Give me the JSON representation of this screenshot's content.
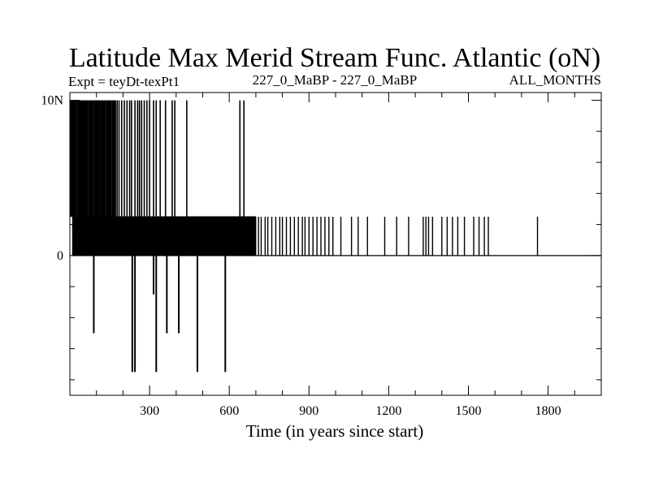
{
  "chart_data": {
    "type": "line",
    "title": "Latitude Max Merid Stream Func. Atlantic (oN)",
    "subtitle_left": "Expt = teyDt-texPt1",
    "subtitle_center": "227_0_MaBP - 227_0_MaBP",
    "subtitle_right": "ALL_MONTHS",
    "xlabel": "Time (in years since start)",
    "ylabel": "",
    "xlim": [
      0,
      2000
    ],
    "ylim": [
      -9,
      10.5
    ],
    "x_ticks": [
      300,
      600,
      900,
      1200,
      1500,
      1800
    ],
    "x_tick_labels": [
      "300",
      "600",
      "900",
      "1200",
      "1500",
      "1800"
    ],
    "y_ticks": [
      10,
      0
    ],
    "y_tick_labels": [
      "10N",
      "0"
    ],
    "series": [
      {
        "values_high": 10,
        "values_mid": 2.5,
        "values_base": 0,
        "spikes_up_to_high": [
          5,
          12,
          18,
          22,
          30,
          38,
          45,
          52,
          58,
          65,
          72,
          80,
          88,
          95,
          102,
          110,
          118,
          125,
          133,
          140,
          148,
          155,
          162,
          170,
          178,
          185,
          195,
          205,
          215,
          225,
          232,
          245,
          255,
          262,
          270,
          280,
          290,
          300,
          315,
          325,
          340,
          360,
          385,
          395,
          440,
          640,
          655
        ],
        "mid_band_range": [
          10,
          700
        ],
        "sparse_mid_events": [
          710,
          720,
          735,
          745,
          760,
          775,
          790,
          800,
          815,
          830,
          845,
          860,
          875,
          885,
          900,
          915,
          930,
          945,
          960,
          975,
          990,
          1020,
          1060,
          1085,
          1120,
          1185,
          1230,
          1275,
          1330,
          1340,
          1350,
          1365,
          1400,
          1420,
          1440,
          1460,
          1485,
          1520,
          1540,
          1560,
          1575,
          1760
        ],
        "spikes_down": [
          {
            "x": 90,
            "y": -5
          },
          {
            "x": 235,
            "y": -7.5
          },
          {
            "x": 245,
            "y": -7.5
          },
          {
            "x": 315,
            "y": -2.5
          },
          {
            "x": 325,
            "y": -7.5
          },
          {
            "x": 365,
            "y": -5
          },
          {
            "x": 410,
            "y": -5
          },
          {
            "x": 480,
            "y": -7.5
          },
          {
            "x": 585,
            "y": -7.5
          }
        ]
      }
    ],
    "grid": false,
    "color": "#000000"
  }
}
